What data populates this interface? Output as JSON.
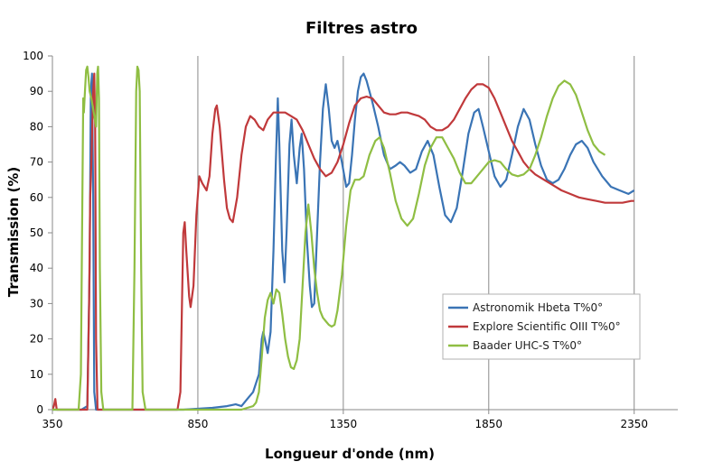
{
  "chart_data": {
    "type": "line",
    "title": "Filtres astro",
    "xlabel": "Longueur d'onde (nm)",
    "ylabel": "Transmission (%)",
    "xlim": [
      350,
      2500
    ],
    "ylim": [
      0,
      100
    ],
    "xticks": [
      350,
      850,
      1350,
      1850,
      2350
    ],
    "yticks": [
      0,
      10,
      20,
      30,
      40,
      50,
      60,
      70,
      80,
      90,
      100
    ],
    "grid": "vertical",
    "legend_position": "lower-right",
    "series": [
      {
        "name": "Astronomik Hbeta T%0°",
        "color": "#3a74b5",
        "points": [
          [
            350,
            0
          ],
          [
            450,
            0
          ],
          [
            470,
            1
          ],
          [
            478,
            40
          ],
          [
            482,
            90
          ],
          [
            486,
            95
          ],
          [
            490,
            60
          ],
          [
            494,
            5
          ],
          [
            500,
            0
          ],
          [
            600,
            0
          ],
          [
            700,
            0
          ],
          [
            800,
            0
          ],
          [
            900,
            0.5
          ],
          [
            950,
            1
          ],
          [
            980,
            1.5
          ],
          [
            1000,
            1
          ],
          [
            1020,
            3
          ],
          [
            1040,
            5
          ],
          [
            1060,
            10
          ],
          [
            1070,
            20
          ],
          [
            1075,
            22
          ],
          [
            1080,
            20
          ],
          [
            1090,
            16
          ],
          [
            1100,
            22
          ],
          [
            1110,
            45
          ],
          [
            1118,
            70
          ],
          [
            1125,
            88
          ],
          [
            1130,
            75
          ],
          [
            1140,
            45
          ],
          [
            1148,
            36
          ],
          [
            1155,
            50
          ],
          [
            1165,
            75
          ],
          [
            1172,
            82
          ],
          [
            1180,
            72
          ],
          [
            1190,
            64
          ],
          [
            1200,
            74
          ],
          [
            1207,
            78
          ],
          [
            1215,
            68
          ],
          [
            1225,
            48
          ],
          [
            1235,
            35
          ],
          [
            1242,
            29
          ],
          [
            1250,
            30
          ],
          [
            1260,
            50
          ],
          [
            1270,
            70
          ],
          [
            1280,
            85
          ],
          [
            1290,
            92
          ],
          [
            1300,
            85
          ],
          [
            1310,
            76
          ],
          [
            1320,
            74
          ],
          [
            1330,
            76
          ],
          [
            1345,
            70
          ],
          [
            1360,
            63
          ],
          [
            1370,
            64
          ],
          [
            1380,
            72
          ],
          [
            1390,
            82
          ],
          [
            1400,
            90
          ],
          [
            1410,
            94
          ],
          [
            1420,
            95
          ],
          [
            1430,
            93
          ],
          [
            1450,
            87
          ],
          [
            1470,
            80
          ],
          [
            1490,
            72
          ],
          [
            1510,
            68
          ],
          [
            1530,
            69
          ],
          [
            1545,
            70
          ],
          [
            1560,
            69
          ],
          [
            1580,
            67
          ],
          [
            1600,
            68
          ],
          [
            1620,
            73
          ],
          [
            1640,
            76
          ],
          [
            1660,
            72
          ],
          [
            1680,
            63
          ],
          [
            1700,
            55
          ],
          [
            1720,
            53
          ],
          [
            1740,
            57
          ],
          [
            1760,
            67
          ],
          [
            1780,
            78
          ],
          [
            1800,
            84
          ],
          [
            1815,
            85
          ],
          [
            1830,
            80
          ],
          [
            1850,
            73
          ],
          [
            1870,
            66
          ],
          [
            1890,
            63
          ],
          [
            1910,
            65
          ],
          [
            1930,
            72
          ],
          [
            1950,
            80
          ],
          [
            1970,
            85
          ],
          [
            1990,
            82
          ],
          [
            2010,
            75
          ],
          [
            2030,
            69
          ],
          [
            2050,
            65
          ],
          [
            2070,
            64
          ],
          [
            2090,
            65
          ],
          [
            2110,
            68
          ],
          [
            2130,
            72
          ],
          [
            2150,
            75
          ],
          [
            2170,
            76
          ],
          [
            2190,
            74
          ],
          [
            2210,
            70
          ],
          [
            2240,
            66
          ],
          [
            2270,
            63
          ],
          [
            2300,
            62
          ],
          [
            2330,
            61
          ],
          [
            2350,
            62
          ]
        ]
      },
      {
        "name": "Explore Scientific OIII T%0°",
        "color": "#c0393b",
        "points": [
          [
            350,
            0
          ],
          [
            355,
            1
          ],
          [
            360,
            3
          ],
          [
            365,
            0
          ],
          [
            450,
            0
          ],
          [
            470,
            0
          ],
          [
            476,
            30
          ],
          [
            480,
            60
          ],
          [
            484,
            70
          ],
          [
            490,
            90
          ],
          [
            494,
            95
          ],
          [
            497,
            80
          ],
          [
            500,
            20
          ],
          [
            505,
            0
          ],
          [
            600,
            0
          ],
          [
            700,
            0
          ],
          [
            780,
            0
          ],
          [
            790,
            5
          ],
          [
            800,
            50
          ],
          [
            805,
            53
          ],
          [
            810,
            45
          ],
          [
            820,
            32
          ],
          [
            825,
            29
          ],
          [
            835,
            35
          ],
          [
            845,
            55
          ],
          [
            855,
            66
          ],
          [
            865,
            64
          ],
          [
            880,
            62
          ],
          [
            890,
            66
          ],
          [
            900,
            78
          ],
          [
            910,
            85
          ],
          [
            915,
            86
          ],
          [
            925,
            80
          ],
          [
            940,
            65
          ],
          [
            950,
            57
          ],
          [
            960,
            54
          ],
          [
            970,
            53
          ],
          [
            985,
            60
          ],
          [
            1000,
            72
          ],
          [
            1015,
            80
          ],
          [
            1030,
            83
          ],
          [
            1045,
            82
          ],
          [
            1060,
            80
          ],
          [
            1075,
            79
          ],
          [
            1090,
            82
          ],
          [
            1110,
            84
          ],
          [
            1130,
            84
          ],
          [
            1150,
            84
          ],
          [
            1170,
            83
          ],
          [
            1190,
            82
          ],
          [
            1210,
            79
          ],
          [
            1230,
            75
          ],
          [
            1250,
            71
          ],
          [
            1270,
            68
          ],
          [
            1290,
            66
          ],
          [
            1310,
            67
          ],
          [
            1330,
            70
          ],
          [
            1350,
            75
          ],
          [
            1370,
            81
          ],
          [
            1390,
            86
          ],
          [
            1410,
            88
          ],
          [
            1430,
            88.5
          ],
          [
            1450,
            88
          ],
          [
            1470,
            86
          ],
          [
            1490,
            84
          ],
          [
            1510,
            83.5
          ],
          [
            1530,
            83.5
          ],
          [
            1550,
            84
          ],
          [
            1570,
            84
          ],
          [
            1590,
            83.5
          ],
          [
            1610,
            83
          ],
          [
            1630,
            82
          ],
          [
            1650,
            80
          ],
          [
            1670,
            79
          ],
          [
            1690,
            79
          ],
          [
            1710,
            80
          ],
          [
            1730,
            82
          ],
          [
            1750,
            85
          ],
          [
            1770,
            88
          ],
          [
            1790,
            90.5
          ],
          [
            1810,
            92
          ],
          [
            1830,
            92
          ],
          [
            1850,
            91
          ],
          [
            1870,
            88
          ],
          [
            1890,
            84
          ],
          [
            1910,
            80
          ],
          [
            1930,
            76
          ],
          [
            1950,
            73
          ],
          [
            1970,
            70
          ],
          [
            1990,
            68
          ],
          [
            2010,
            66.5
          ],
          [
            2040,
            65
          ],
          [
            2070,
            63.5
          ],
          [
            2100,
            62
          ],
          [
            2130,
            61
          ],
          [
            2160,
            60
          ],
          [
            2190,
            59.5
          ],
          [
            2220,
            59
          ],
          [
            2250,
            58.5
          ],
          [
            2280,
            58.5
          ],
          [
            2310,
            58.5
          ],
          [
            2340,
            59
          ],
          [
            2350,
            59
          ]
        ]
      },
      {
        "name": "Baader UHC-S T%0°",
        "color": "#8fbe43",
        "points": [
          [
            350,
            0
          ],
          [
            440,
            0
          ],
          [
            448,
            10
          ],
          [
            452,
            50
          ],
          [
            456,
            88
          ],
          [
            458,
            84
          ],
          [
            462,
            90
          ],
          [
            466,
            96
          ],
          [
            470,
            97
          ],
          [
            474,
            94
          ],
          [
            478,
            90
          ],
          [
            484,
            88
          ],
          [
            490,
            85
          ],
          [
            500,
            80
          ],
          [
            504,
            95
          ],
          [
            507,
            97
          ],
          [
            510,
            88
          ],
          [
            513,
            40
          ],
          [
            518,
            5
          ],
          [
            525,
            0
          ],
          [
            600,
            0
          ],
          [
            625,
            0
          ],
          [
            632,
            40
          ],
          [
            638,
            90
          ],
          [
            642,
            97
          ],
          [
            646,
            96
          ],
          [
            650,
            90
          ],
          [
            655,
            40
          ],
          [
            660,
            5
          ],
          [
            670,
            0
          ],
          [
            800,
            0
          ],
          [
            900,
            0
          ],
          [
            950,
            0
          ],
          [
            1000,
            0
          ],
          [
            1020,
            0.5
          ],
          [
            1040,
            1
          ],
          [
            1050,
            2
          ],
          [
            1060,
            5
          ],
          [
            1070,
            15
          ],
          [
            1080,
            26
          ],
          [
            1090,
            31
          ],
          [
            1100,
            33
          ],
          [
            1110,
            30
          ],
          [
            1120,
            34
          ],
          [
            1130,
            33
          ],
          [
            1140,
            27
          ],
          [
            1150,
            20
          ],
          [
            1160,
            15
          ],
          [
            1170,
            12
          ],
          [
            1180,
            11.5
          ],
          [
            1190,
            14
          ],
          [
            1200,
            20
          ],
          [
            1210,
            35
          ],
          [
            1220,
            50
          ],
          [
            1230,
            58
          ],
          [
            1240,
            50
          ],
          [
            1250,
            40
          ],
          [
            1260,
            33
          ],
          [
            1270,
            28
          ],
          [
            1280,
            26
          ],
          [
            1290,
            25
          ],
          [
            1300,
            24
          ],
          [
            1310,
            23.5
          ],
          [
            1320,
            24
          ],
          [
            1330,
            28
          ],
          [
            1345,
            38
          ],
          [
            1360,
            52
          ],
          [
            1375,
            62
          ],
          [
            1390,
            65
          ],
          [
            1405,
            65
          ],
          [
            1420,
            66
          ],
          [
            1440,
            72
          ],
          [
            1460,
            76
          ],
          [
            1475,
            77
          ],
          [
            1490,
            74
          ],
          [
            1510,
            67
          ],
          [
            1530,
            59
          ],
          [
            1550,
            54
          ],
          [
            1570,
            52
          ],
          [
            1590,
            54
          ],
          [
            1610,
            61
          ],
          [
            1630,
            69
          ],
          [
            1650,
            74
          ],
          [
            1670,
            77
          ],
          [
            1690,
            77
          ],
          [
            1710,
            74
          ],
          [
            1730,
            71
          ],
          [
            1750,
            67
          ],
          [
            1770,
            64
          ],
          [
            1790,
            64
          ],
          [
            1810,
            66
          ],
          [
            1830,
            68
          ],
          [
            1850,
            70
          ],
          [
            1870,
            70.5
          ],
          [
            1890,
            70
          ],
          [
            1910,
            68
          ],
          [
            1930,
            66.5
          ],
          [
            1950,
            66
          ],
          [
            1970,
            66.5
          ],
          [
            1990,
            68
          ],
          [
            2010,
            72
          ],
          [
            2030,
            77
          ],
          [
            2050,
            83
          ],
          [
            2070,
            88
          ],
          [
            2090,
            91.5
          ],
          [
            2110,
            93
          ],
          [
            2130,
            92
          ],
          [
            2150,
            89
          ],
          [
            2170,
            84
          ],
          [
            2190,
            79
          ],
          [
            2210,
            75
          ],
          [
            2230,
            73
          ],
          [
            2250,
            72
          ]
        ]
      }
    ]
  }
}
